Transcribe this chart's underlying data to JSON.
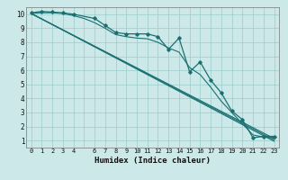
{
  "title": "",
  "xlabel": "Humidex (Indice chaleur)",
  "bg_color": "#cce8e8",
  "grid_color": "#99cccc",
  "line_color": "#1a7070",
  "xlim": [
    -0.5,
    23.5
  ],
  "ylim": [
    0.5,
    10.5
  ],
  "xticks": [
    0,
    1,
    2,
    3,
    4,
    6,
    7,
    8,
    9,
    10,
    11,
    12,
    13,
    14,
    15,
    16,
    17,
    18,
    19,
    20,
    21,
    22,
    23
  ],
  "yticks": [
    1,
    2,
    3,
    4,
    5,
    6,
    7,
    8,
    9,
    10
  ],
  "series_main": {
    "x": [
      0,
      1,
      2,
      3,
      4,
      6,
      7,
      8,
      9,
      10,
      11,
      12,
      13,
      14,
      15,
      16,
      17,
      18,
      19,
      20,
      21,
      22,
      23
    ],
    "y": [
      10.1,
      10.2,
      10.15,
      10.1,
      10.0,
      9.7,
      9.2,
      8.7,
      8.6,
      8.6,
      8.6,
      8.4,
      7.5,
      8.3,
      5.9,
      6.6,
      5.3,
      4.4,
      3.1,
      2.5,
      1.2,
      1.3,
      1.3
    ]
  },
  "series_smooth": [
    {
      "x": [
        0,
        1,
        2,
        3,
        4,
        5,
        6,
        7,
        8,
        9,
        10,
        11,
        12,
        13,
        14,
        15,
        16,
        17,
        18,
        19,
        20,
        21,
        22,
        23
      ],
      "y": [
        10.05,
        10.1,
        10.1,
        10.05,
        9.9,
        9.7,
        9.4,
        9.0,
        8.55,
        8.4,
        8.3,
        8.25,
        8.0,
        7.6,
        7.3,
        6.2,
        5.7,
        4.8,
        3.8,
        3.0,
        2.2,
        1.4,
        1.25,
        1.2
      ]
    },
    {
      "x": [
        0,
        23
      ],
      "y": [
        10.05,
        1.15
      ]
    },
    {
      "x": [
        0,
        23
      ],
      "y": [
        10.05,
        1.05
      ]
    },
    {
      "x": [
        0,
        23
      ],
      "y": [
        10.05,
        0.95
      ]
    }
  ]
}
